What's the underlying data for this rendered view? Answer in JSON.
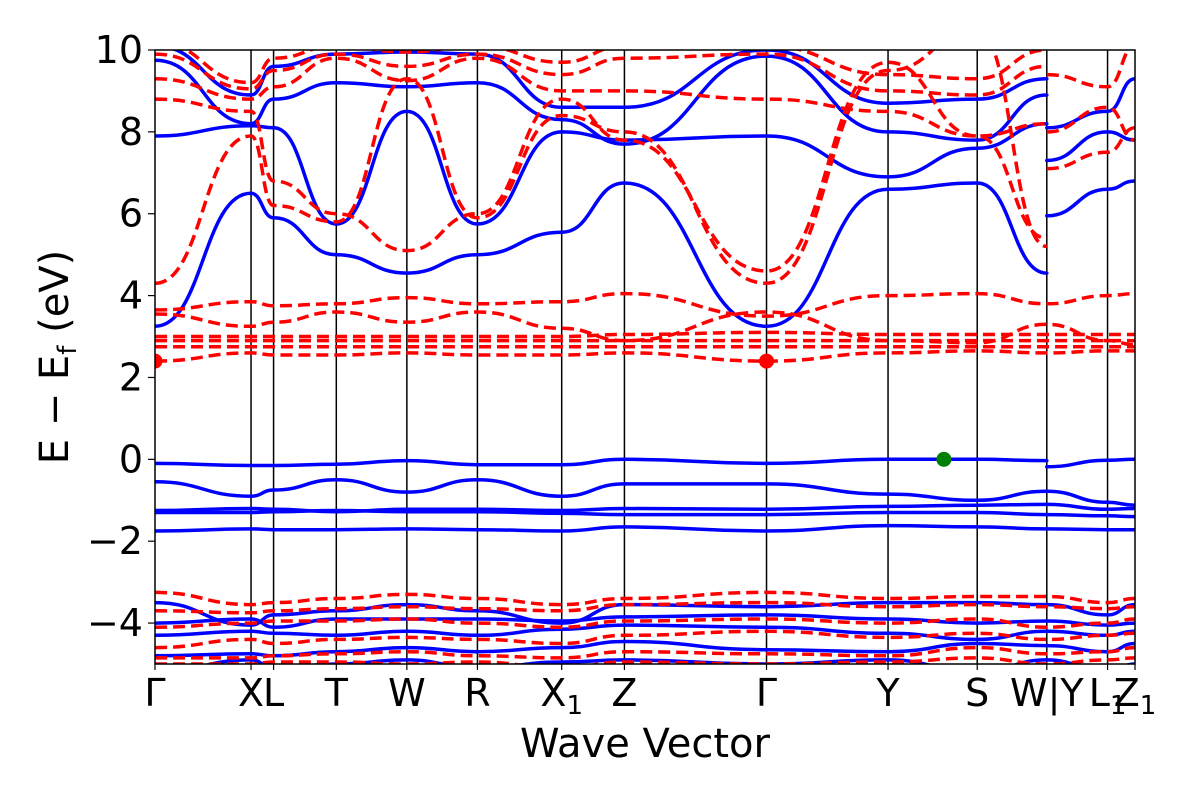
{
  "chart_data": {
    "type": "line",
    "xlabel": "Wave Vector",
    "ylabel": "E − E",
    "ylabel_sub": "f",
    "ylabel_unit": " (eV)",
    "ylim": [
      -5,
      10
    ],
    "yticks": [
      {
        "value": 10,
        "label": "10"
      },
      {
        "value": 8,
        "label": "8"
      },
      {
        "value": 6,
        "label": "6"
      },
      {
        "value": 4,
        "label": "4"
      },
      {
        "value": 2,
        "label": "2"
      },
      {
        "value": 0,
        "label": "0"
      },
      {
        "value": -2,
        "label": "−2"
      },
      {
        "value": -4,
        "label": "−4"
      }
    ],
    "kpath": [
      {
        "x": 0.0,
        "label": "Γ"
      },
      {
        "x": 0.98,
        "label": "X"
      },
      {
        "x": 1.21,
        "label": "L"
      },
      {
        "x": 1.85,
        "label": "T"
      },
      {
        "x": 2.57,
        "label": "W"
      },
      {
        "x": 3.29,
        "label": "R"
      },
      {
        "x": 4.15,
        "label": "X",
        "sub": "1"
      },
      {
        "x": 4.79,
        "label": "Z"
      },
      {
        "x": 6.24,
        "label": "Γ"
      },
      {
        "x": 7.48,
        "label": "Y"
      },
      {
        "x": 8.39,
        "label": "S"
      },
      {
        "x": 9.1,
        "label": "W|Y"
      },
      {
        "x": 9.72,
        "label": "L",
        "sub": "1"
      },
      {
        "x": 10.0,
        "label": "Z",
        "sub": "1"
      }
    ],
    "xrange": [
      0,
      10
    ],
    "colors": {
      "spin_up": "#0000ff",
      "spin_down": "#ff0000",
      "vbm": "#008000",
      "cbm": "#ff0000"
    },
    "markers": [
      {
        "name": "cbm",
        "x": 0.0,
        "y": 2.4
      },
      {
        "name": "cbm",
        "x": 6.24,
        "y": 2.4
      },
      {
        "name": "vbm",
        "x": 8.05,
        "y": 0.0
      }
    ],
    "series": [
      {
        "style": "solid",
        "x": [
          0,
          0.98,
          1.21,
          1.85,
          2.57,
          3.29,
          4.15,
          4.79,
          6.24,
          7.48,
          8.39,
          9.1
        ],
        "y": [
          -0.1,
          -0.15,
          -0.15,
          -0.12,
          -0.03,
          -0.13,
          -0.13,
          0.0,
          -0.1,
          0.0,
          0.0,
          -0.03
        ]
      },
      {
        "style": "solid",
        "x": [
          9.1,
          9.72,
          10.0
        ],
        "y": [
          -0.18,
          -0.02,
          0.0
        ]
      },
      {
        "style": "solid",
        "x": [
          0,
          0.98,
          1.21,
          1.85,
          2.57,
          3.29,
          4.15,
          4.79,
          6.24,
          7.48,
          8.39,
          9.1,
          9.72,
          10.0
        ],
        "y": [
          -0.55,
          -0.9,
          -0.75,
          -0.5,
          -0.8,
          -0.5,
          -0.9,
          -0.6,
          -0.6,
          -0.85,
          -1.0,
          -0.78,
          -1.05,
          -1.12
        ]
      },
      {
        "style": "solid",
        "x": [
          0,
          0.98,
          1.21,
          1.85,
          2.57,
          3.29,
          4.15,
          4.79,
          6.24,
          7.48,
          8.39,
          9.1,
          9.72,
          10.0
        ],
        "y": [
          -1.25,
          -1.2,
          -1.22,
          -1.28,
          -1.22,
          -1.22,
          -1.25,
          -1.2,
          -1.22,
          -1.15,
          -1.12,
          -1.1,
          -1.22,
          -1.2
        ]
      },
      {
        "style": "solid",
        "x": [
          0,
          0.98,
          1.21,
          1.85,
          2.57,
          3.29,
          4.15,
          4.79,
          6.24,
          7.48,
          8.39,
          9.1,
          9.72,
          10.0
        ],
        "y": [
          -1.3,
          -1.3,
          -1.28,
          -1.25,
          -1.28,
          -1.28,
          -1.32,
          -1.35,
          -1.35,
          -1.3,
          -1.3,
          -1.35,
          -1.38,
          -1.4
        ]
      },
      {
        "style": "solid",
        "x": [
          0,
          0.98,
          1.21,
          1.85,
          2.57,
          3.29,
          4.15,
          4.79,
          6.24,
          7.48,
          8.39,
          9.1,
          9.72,
          10.0
        ],
        "y": [
          -1.75,
          -1.7,
          -1.72,
          -1.72,
          -1.7,
          -1.72,
          -1.75,
          -1.65,
          -1.75,
          -1.62,
          -1.65,
          -1.7,
          -1.72,
          -1.72
        ]
      },
      {
        "style": "solid",
        "x": [
          0,
          0.98,
          1.21,
          1.85,
          2.57,
          3.29,
          4.15,
          4.79,
          6.24,
          7.48,
          8.39,
          9.1
        ],
        "y": [
          3.25,
          6.5,
          5.9,
          5.0,
          4.55,
          5.0,
          5.55,
          6.75,
          3.25,
          6.6,
          6.75,
          4.55
        ]
      },
      {
        "style": "solid",
        "x": [
          0,
          0.98,
          1.21,
          1.85,
          2.57,
          3.29,
          4.15,
          4.79,
          6.24,
          7.48,
          8.39,
          9.1
        ],
        "y": [
          7.9,
          8.15,
          8.1,
          5.75,
          8.5,
          5.75,
          8.0,
          7.8,
          7.9,
          6.9,
          7.6,
          8.2
        ]
      },
      {
        "style": "solid",
        "x": [
          0,
          0.98,
          1.21,
          1.85,
          2.57,
          3.29,
          4.15,
          4.79,
          6.24,
          7.48,
          8.39,
          9.1
        ],
        "y": [
          9.75,
          8.2,
          8.8,
          9.2,
          9.1,
          9.2,
          8.3,
          7.7,
          9.85,
          8.0,
          7.8,
          8.9
        ]
      },
      {
        "style": "solid",
        "x": [
          0,
          0.98,
          1.21,
          1.85,
          2.57,
          3.29,
          4.15,
          4.79,
          6.24,
          7.48,
          8.39,
          9.1
        ],
        "y": [
          10.1,
          8.9,
          9.6,
          9.9,
          9.95,
          9.9,
          8.6,
          8.6,
          10.0,
          8.7,
          8.8,
          9.3
        ]
      },
      {
        "style": "solid",
        "x": [
          9.1,
          9.72,
          10.0
        ],
        "y": [
          5.95,
          6.6,
          6.8
        ]
      },
      {
        "style": "solid",
        "x": [
          9.1,
          9.72,
          10.0
        ],
        "y": [
          7.3,
          8.0,
          7.8
        ]
      },
      {
        "style": "solid",
        "x": [
          9.1,
          9.72,
          10.0
        ],
        "y": [
          8.1,
          8.5,
          9.3
        ]
      },
      {
        "style": "solid",
        "x": [
          0,
          0.98,
          1.21,
          1.85,
          2.57,
          3.29,
          4.15,
          4.79,
          6.24,
          7.48,
          8.39,
          9.1,
          9.72,
          10.0
        ],
        "y": [
          -3.5,
          -4.05,
          -3.8,
          -3.7,
          -3.55,
          -3.7,
          -4.0,
          -3.55,
          -3.6,
          -3.5,
          -3.5,
          -3.55,
          -3.8,
          -3.55
        ]
      },
      {
        "style": "solid",
        "x": [
          0,
          0.98,
          1.21,
          1.85,
          2.57,
          3.29,
          4.15,
          4.79,
          6.24,
          7.48,
          8.39,
          9.1,
          9.72,
          10.0
        ],
        "y": [
          -4.0,
          -3.9,
          -4.1,
          -3.9,
          -3.9,
          -3.9,
          -3.95,
          -3.85,
          -3.8,
          -3.9,
          -4.0,
          -3.95,
          -4.05,
          -4.0
        ]
      },
      {
        "style": "solid",
        "x": [
          0,
          0.98,
          1.21,
          1.85,
          2.57,
          3.29,
          4.15,
          4.79,
          6.24,
          7.48,
          8.39,
          9.1,
          9.72,
          10.0
        ],
        "y": [
          -4.3,
          -4.2,
          -4.25,
          -4.3,
          -4.2,
          -4.3,
          -4.15,
          -4.05,
          -4.1,
          -4.25,
          -4.4,
          -4.2,
          -4.3,
          -4.2
        ]
      },
      {
        "style": "solid",
        "x": [
          0,
          0.98,
          1.21,
          1.85,
          2.57,
          3.29,
          4.15,
          4.79,
          6.24,
          7.48,
          8.39,
          9.1,
          9.72,
          10.0
        ],
        "y": [
          -4.8,
          -4.75,
          -4.8,
          -4.7,
          -4.6,
          -4.7,
          -4.6,
          -4.45,
          -4.65,
          -4.7,
          -4.5,
          -4.55,
          -4.7,
          -4.5
        ]
      },
      {
        "style": "solid",
        "x": [
          0,
          0.98,
          1.21,
          1.85,
          2.57,
          3.29,
          4.15,
          4.79,
          6.24,
          7.48,
          8.39,
          9.1,
          9.72,
          10.0
        ],
        "y": [
          -5.2,
          -4.9,
          -5.1,
          -5.0,
          -4.9,
          -5.1,
          -4.95,
          -4.9,
          -5.0,
          -4.9,
          -5.2,
          -4.9,
          -5.2,
          -5.0
        ]
      },
      {
        "style": "dashed",
        "x": [
          0,
          0.98,
          1.21,
          1.85,
          2.57,
          3.29,
          4.15,
          4.79,
          6.24,
          7.48,
          8.39,
          9.1,
          9.72,
          10.0
        ],
        "y": [
          2.4,
          2.6,
          2.55,
          2.55,
          2.6,
          2.55,
          2.55,
          2.6,
          2.4,
          2.6,
          2.65,
          2.6,
          2.65,
          2.65
        ]
      },
      {
        "style": "dashed",
        "x": [
          0,
          0.98,
          1.21,
          1.85,
          2.57,
          3.29,
          4.15,
          4.79,
          6.24,
          7.48,
          8.39,
          9.1,
          9.72,
          10.0
        ],
        "y": [
          2.75,
          2.75,
          2.75,
          2.75,
          2.75,
          2.75,
          2.75,
          2.75,
          2.75,
          2.75,
          2.75,
          2.75,
          2.75,
          2.75
        ]
      },
      {
        "style": "dashed",
        "x": [
          0,
          0.98,
          1.21,
          1.85,
          2.57,
          3.29,
          4.15,
          4.79,
          6.24,
          7.48,
          8.39,
          9.1,
          9.72,
          10.0
        ],
        "y": [
          2.9,
          2.9,
          2.9,
          2.9,
          2.9,
          2.9,
          2.9,
          2.9,
          2.9,
          2.9,
          2.9,
          2.9,
          2.9,
          2.9
        ]
      },
      {
        "style": "dashed",
        "x": [
          0,
          0.98,
          1.21,
          1.85,
          2.57,
          3.29,
          4.15,
          4.79,
          6.24,
          7.48,
          8.39,
          9.1,
          9.72,
          10.0
        ],
        "y": [
          3.0,
          3.0,
          3.0,
          3.0,
          3.0,
          3.0,
          3.0,
          3.05,
          3.1,
          3.05,
          3.05,
          3.05,
          3.05,
          3.05
        ]
      },
      {
        "style": "dashed",
        "x": [
          0,
          0.98,
          1.21,
          1.85,
          2.57,
          3.29,
          4.15,
          4.79,
          6.24,
          7.48,
          8.39,
          9.1,
          9.72,
          10.0
        ],
        "y": [
          3.55,
          3.25,
          3.35,
          3.6,
          3.35,
          3.6,
          3.2,
          2.9,
          3.6,
          2.9,
          2.85,
          3.3,
          2.9,
          2.8
        ]
      },
      {
        "style": "dashed",
        "x": [
          0,
          0.98,
          1.21,
          1.85,
          2.57,
          3.29,
          4.15,
          4.79,
          6.24,
          7.48,
          8.39,
          9.1,
          9.72,
          10.0
        ],
        "y": [
          3.65,
          3.85,
          3.75,
          3.8,
          3.95,
          3.8,
          3.85,
          4.05,
          3.5,
          4.0,
          4.05,
          3.8,
          4.0,
          4.05
        ]
      },
      {
        "style": "dashed",
        "x": [
          0,
          0.98,
          1.21,
          1.85,
          2.57,
          3.29,
          4.15,
          4.79,
          6.24,
          7.48,
          8.39,
          9.1
        ],
        "y": [
          4.3,
          7.9,
          6.2,
          5.8,
          9.3,
          5.9,
          8.4,
          8.0,
          4.3,
          9.5,
          10.5,
          5.2
        ]
      },
      {
        "style": "dashed",
        "x": [
          0,
          0.98,
          1.21,
          1.85,
          2.57,
          3.29,
          4.15,
          4.79,
          6.24,
          7.48,
          8.39,
          9.1
        ],
        "y": [
          8.8,
          8.5,
          6.8,
          6.0,
          5.1,
          6.0,
          8.8,
          7.8,
          4.6,
          9.7,
          7.9,
          5.4
        ]
      },
      {
        "style": "dashed",
        "x": [
          0,
          0.98,
          1.21,
          1.85,
          2.57,
          3.29,
          4.15,
          4.79,
          6.24,
          7.48,
          8.39,
          9.1
        ],
        "y": [
          9.3,
          8.8,
          9.1,
          9.8,
          9.25,
          9.8,
          9.0,
          9.0,
          8.8,
          8.5,
          7.9,
          8.2
        ]
      },
      {
        "style": "dashed",
        "x": [
          0,
          0.98,
          1.21,
          1.85,
          2.57,
          3.29,
          4.15,
          4.79,
          6.24,
          7.48,
          8.39,
          9.1
        ],
        "y": [
          9.9,
          9.05,
          9.5,
          9.9,
          9.6,
          9.9,
          9.4,
          9.8,
          9.9,
          9.0,
          8.9,
          9.6
        ]
      },
      {
        "style": "dashed",
        "x": [
          0,
          0.98,
          1.21,
          1.85,
          2.57,
          3.29,
          4.15,
          4.79,
          6.24,
          7.48,
          8.39,
          9.1
        ],
        "y": [
          10.2,
          9.2,
          9.8,
          10.1,
          9.95,
          10.1,
          9.7,
          10.1,
          10.1,
          9.4,
          9.3,
          10.0
        ]
      },
      {
        "style": "dashed",
        "x": [
          9.1,
          9.72,
          10.0
        ],
        "y": [
          7.1,
          7.5,
          8.1
        ]
      },
      {
        "style": "dashed",
        "x": [
          9.1,
          9.72,
          10.0
        ],
        "y": [
          8.0,
          8.6,
          7.8
        ]
      },
      {
        "style": "dashed",
        "x": [
          9.1,
          9.72,
          10.0
        ],
        "y": [
          9.4,
          9.1,
          10.1
        ]
      },
      {
        "style": "dashed",
        "x": [
          0,
          0.98,
          1.21,
          1.85,
          2.57,
          3.29,
          4.15,
          4.79,
          6.24,
          7.48,
          8.39,
          9.1,
          9.72,
          10.0
        ],
        "y": [
          -3.25,
          -3.55,
          -3.5,
          -3.4,
          -3.3,
          -3.4,
          -3.55,
          -3.4,
          -3.25,
          -3.4,
          -3.35,
          -3.35,
          -3.5,
          -3.4
        ]
      },
      {
        "style": "dashed",
        "x": [
          0,
          0.98,
          1.21,
          1.85,
          2.57,
          3.29,
          4.15,
          4.79,
          6.24,
          7.48,
          8.39,
          9.1,
          9.72,
          10.0
        ],
        "y": [
          -3.7,
          -3.75,
          -3.7,
          -3.65,
          -3.6,
          -3.65,
          -3.7,
          -3.55,
          -3.5,
          -3.6,
          -3.55,
          -3.6,
          -3.65,
          -3.6
        ]
      },
      {
        "style": "dashed",
        "x": [
          0,
          0.98,
          1.21,
          1.85,
          2.57,
          3.29,
          4.15,
          4.79,
          6.24,
          7.48,
          8.39,
          9.1,
          9.72,
          10.0
        ],
        "y": [
          -4.1,
          -4.0,
          -3.95,
          -3.95,
          -3.9,
          -4.0,
          -4.1,
          -3.95,
          -3.9,
          -4.0,
          -3.9,
          -4.1,
          -4.0,
          -3.9
        ]
      },
      {
        "style": "dashed",
        "x": [
          0,
          0.98,
          1.21,
          1.85,
          2.57,
          3.29,
          4.15,
          4.79,
          6.24,
          7.48,
          8.39,
          9.1,
          9.72,
          10.0
        ],
        "y": [
          -4.6,
          -4.4,
          -4.5,
          -4.4,
          -4.35,
          -4.4,
          -4.5,
          -4.3,
          -4.2,
          -4.35,
          -4.25,
          -4.4,
          -4.3,
          -4.25
        ]
      },
      {
        "style": "dashed",
        "x": [
          0,
          0.98,
          1.21,
          1.85,
          2.57,
          3.29,
          4.15,
          4.79,
          6.24,
          7.48,
          8.39,
          9.1,
          9.72,
          10.0
        ],
        "y": [
          -4.85,
          -4.85,
          -4.8,
          -4.75,
          -4.7,
          -4.8,
          -4.85,
          -4.7,
          -4.75,
          -4.8,
          -4.6,
          -4.75,
          -4.7,
          -4.6
        ]
      },
      {
        "style": "dashed",
        "x": [
          0,
          0.98,
          1.21,
          1.85,
          2.57,
          3.29,
          4.15,
          4.79,
          6.24,
          7.48,
          8.39,
          9.1,
          9.72,
          10.0
        ],
        "y": [
          -5.0,
          -5.0,
          -4.95,
          -4.95,
          -5.0,
          -4.95,
          -5.1,
          -4.95,
          -5.0,
          -4.95,
          -4.85,
          -5.0,
          -4.9,
          -4.85
        ]
      }
    ]
  }
}
